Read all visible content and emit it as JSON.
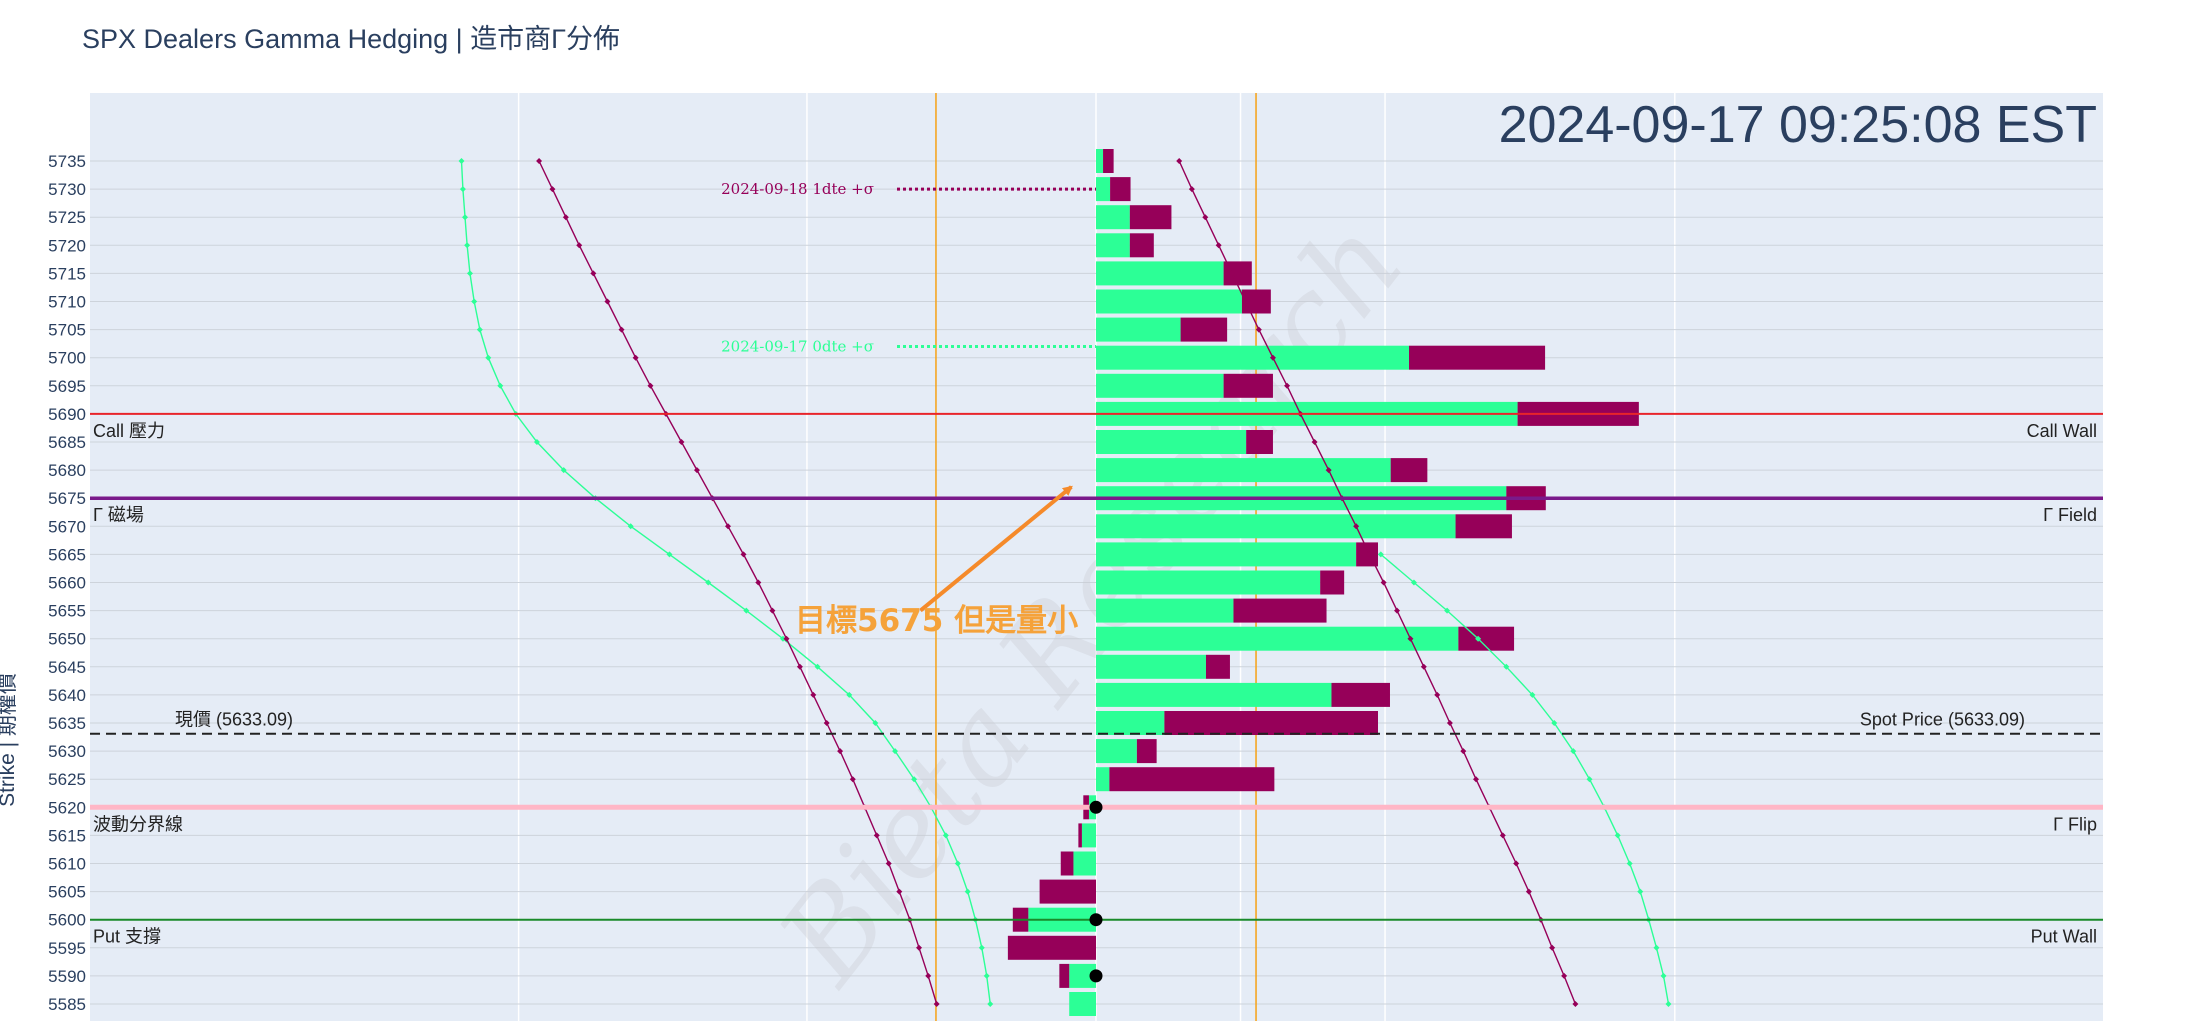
{
  "chart_data": {
    "type": "bar",
    "title": "SPX Dealers Gamma Hedging | 造市商Γ分佈",
    "timestamp": "2024-09-17 09:25:08 EST",
    "ylabel": "Strike | 期權價",
    "ylim": [
      5584,
      5738
    ],
    "xlim": [
      -1000,
      1000
    ],
    "orientation": "horizontal",
    "strikes": [
      5735,
      5730,
      5725,
      5720,
      5715,
      5710,
      5705,
      5700,
      5695,
      5690,
      5685,
      5680,
      5675,
      5670,
      5665,
      5660,
      5655,
      5650,
      5645,
      5640,
      5635,
      5630,
      5625,
      5620,
      5615,
      5610,
      5605,
      5600,
      5595,
      5590,
      5585
    ],
    "series": [
      {
        "color": "#2cff96",
        "values": [
          10,
          20,
          48,
          48,
          181,
          207,
          120,
          444,
          181,
          598,
          213,
          418,
          582,
          510,
          369,
          318,
          195,
          514,
          156,
          334,
          97,
          58,
          19,
          -10,
          -20,
          -32,
          0,
          -96,
          0,
          -38,
          -38
        ]
      },
      {
        "color": "#960059",
        "values": [
          15,
          29,
          59,
          34,
          40,
          41,
          66,
          193,
          70,
          172,
          38,
          52,
          56,
          80,
          31,
          34,
          132,
          79,
          34,
          83,
          303,
          28,
          234,
          -8,
          -5,
          -18,
          -80,
          -22,
          -125,
          -14,
          0
        ]
      }
    ],
    "curves": [
      {
        "color": "#2cff96",
        "points": [
          [
            5735,
            -900
          ],
          [
            5730,
            -898
          ],
          [
            5725,
            -895
          ],
          [
            5720,
            -892
          ],
          [
            5715,
            -888
          ],
          [
            5710,
            -882
          ],
          [
            5705,
            -874
          ],
          [
            5700,
            -862
          ],
          [
            5695,
            -845
          ],
          [
            5690,
            -823
          ],
          [
            5685,
            -793
          ],
          [
            5680,
            -755
          ],
          [
            5675,
            -710
          ],
          [
            5670,
            -660
          ],
          [
            5665,
            -605
          ],
          [
            5660,
            -550
          ],
          [
            5655,
            -496
          ],
          [
            5650,
            -444
          ],
          [
            5645,
            -395
          ],
          [
            5640,
            -350
          ],
          [
            5635,
            -313
          ],
          [
            5630,
            -285
          ],
          [
            5625,
            -258
          ],
          [
            5620,
            -234
          ],
          [
            5615,
            -213
          ],
          [
            5610,
            -196
          ],
          [
            5605,
            -182
          ],
          [
            5600,
            -171
          ],
          [
            5595,
            -162
          ],
          [
            5590,
            -155
          ],
          [
            5585,
            -150
          ]
        ]
      },
      {
        "color": "#960059",
        "points": [
          [
            5735,
            -790
          ],
          [
            5730,
            -771
          ],
          [
            5725,
            -752
          ],
          [
            5720,
            -733
          ],
          [
            5715,
            -713
          ],
          [
            5710,
            -693
          ],
          [
            5705,
            -673
          ],
          [
            5700,
            -653
          ],
          [
            5695,
            -632
          ],
          [
            5690,
            -610
          ],
          [
            5685,
            -588
          ],
          [
            5680,
            -566
          ],
          [
            5675,
            -544
          ],
          [
            5670,
            -522
          ],
          [
            5665,
            -500
          ],
          [
            5660,
            -479
          ],
          [
            5655,
            -459
          ],
          [
            5650,
            -439
          ],
          [
            5645,
            -420
          ],
          [
            5640,
            -401
          ],
          [
            5635,
            -382
          ],
          [
            5630,
            -363
          ],
          [
            5625,
            -345
          ],
          [
            5620,
            -328
          ],
          [
            5615,
            -311
          ],
          [
            5610,
            -294
          ],
          [
            5605,
            -279
          ],
          [
            5600,
            -264
          ],
          [
            5595,
            -251
          ],
          [
            5590,
            -238
          ],
          [
            5585,
            -226
          ]
        ]
      },
      {
        "color": "#960059",
        "points": [
          [
            5735,
            118
          ],
          [
            5730,
            136
          ],
          [
            5725,
            155
          ],
          [
            5720,
            174
          ],
          [
            5715,
            193
          ],
          [
            5710,
            212
          ],
          [
            5705,
            231
          ],
          [
            5700,
            251
          ],
          [
            5695,
            271
          ],
          [
            5690,
            290
          ],
          [
            5685,
            310
          ],
          [
            5680,
            330
          ],
          [
            5675,
            349
          ],
          [
            5670,
            369
          ],
          [
            5665,
            388
          ],
          [
            5660,
            408
          ],
          [
            5655,
            427
          ],
          [
            5650,
            446
          ],
          [
            5645,
            465
          ],
          [
            5640,
            484
          ],
          [
            5635,
            502
          ],
          [
            5630,
            521
          ],
          [
            5625,
            539
          ],
          [
            5620,
            558
          ],
          [
            5615,
            577
          ],
          [
            5610,
            596
          ],
          [
            5605,
            614
          ],
          [
            5600,
            631
          ],
          [
            5595,
            647
          ],
          [
            5590,
            664
          ],
          [
            5585,
            680
          ]
        ]
      },
      {
        "color": "#2cff96",
        "points": [
          [
            5665,
            404
          ],
          [
            5660,
            451
          ],
          [
            5655,
            498
          ],
          [
            5650,
            542
          ],
          [
            5645,
            582
          ],
          [
            5640,
            619
          ],
          [
            5635,
            650
          ],
          [
            5630,
            677
          ],
          [
            5625,
            700
          ],
          [
            5620,
            721
          ],
          [
            5615,
            740
          ],
          [
            5610,
            757
          ],
          [
            5605,
            772
          ],
          [
            5600,
            784
          ],
          [
            5595,
            795
          ],
          [
            5590,
            805
          ],
          [
            5585,
            812
          ]
        ]
      }
    ],
    "levels": [
      {
        "name": "call-wall",
        "strike": 5690,
        "color": "#e8242a",
        "left": "Call 壓力",
        "right": "Call Wall"
      },
      {
        "name": "gamma-field",
        "strike": 5675,
        "color": "#7a1a8a",
        "left": "Γ 磁場",
        "right": "Γ Field"
      },
      {
        "name": "spot-price",
        "strike": 5633.09,
        "color": "#222222",
        "left": "現價 (5633.09)",
        "right": "Spot Price (5633.09)"
      },
      {
        "name": "gamma-flip",
        "strike": 5620,
        "color": "#ffb6c6",
        "left": "波動分界線",
        "right": "Γ Flip"
      },
      {
        "name": "put-wall",
        "strike": 5600,
        "color": "#1a8a2a",
        "left": "Put 支撐",
        "right": "Put Wall"
      }
    ],
    "vertical_lines": [
      {
        "x": -227,
        "color": "#f5a623"
      },
      {
        "x": 227,
        "color": "#f5a623"
      }
    ],
    "expected_moves": [
      {
        "label": "2024-09-18 1dte +σ",
        "strike": 5730,
        "color": "#960059"
      },
      {
        "label": "2024-09-17 0dte +σ",
        "strike": 5702,
        "color": "#2cff96"
      }
    ],
    "dots": [
      5620,
      5600,
      5590
    ],
    "annotation": {
      "text": "目標5675 但是量小",
      "from": [
        5655,
        -249
      ],
      "to": [
        5677,
        -35
      ]
    },
    "watermark": "Bieta Research"
  }
}
